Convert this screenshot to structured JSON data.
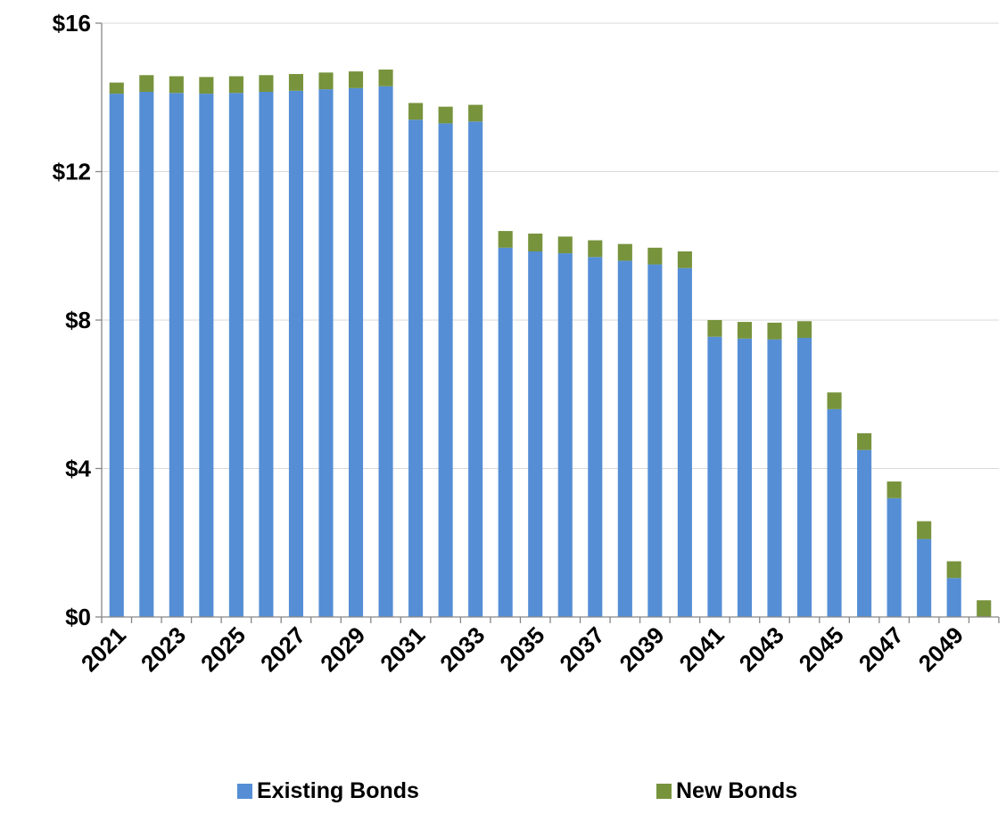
{
  "chart_data": {
    "type": "bar",
    "stacked": true,
    "title": "",
    "xlabel": "",
    "ylabel": "",
    "ylim": [
      0,
      16
    ],
    "y_ticks": [
      0,
      4,
      8,
      12,
      16
    ],
    "y_tick_labels": [
      "$0",
      "$4",
      "$8",
      "$12",
      "$16"
    ],
    "grid": true,
    "legend_position": "bottom",
    "categories": [
      "2021",
      "2022",
      "2023",
      "2024",
      "2025",
      "2026",
      "2027",
      "2028",
      "2029",
      "2030",
      "2031",
      "2032",
      "2033",
      "2034",
      "2035",
      "2036",
      "2037",
      "2038",
      "2039",
      "2040",
      "2041",
      "2042",
      "2043",
      "2044",
      "2045",
      "2046",
      "2047",
      "2048",
      "2049",
      "2050"
    ],
    "x_tick_labels_shown": [
      "2021",
      "2023",
      "2025",
      "2027",
      "2029",
      "2031",
      "2033",
      "2035",
      "2037",
      "2039",
      "2041",
      "2043",
      "2045",
      "2047",
      "2049"
    ],
    "series": [
      {
        "name": "Existing Bonds",
        "color": "#558ed5",
        "values": [
          14.1,
          14.15,
          14.12,
          14.1,
          14.12,
          14.15,
          14.18,
          14.22,
          14.25,
          14.3,
          13.4,
          13.3,
          13.35,
          9.95,
          9.85,
          9.8,
          9.7,
          9.6,
          9.5,
          9.4,
          7.55,
          7.5,
          7.48,
          7.52,
          5.6,
          4.5,
          3.2,
          2.1,
          1.05,
          0.0
        ]
      },
      {
        "name": "New Bonds",
        "color": "#77933c",
        "values": [
          0.3,
          0.45,
          0.45,
          0.45,
          0.45,
          0.45,
          0.45,
          0.45,
          0.45,
          0.45,
          0.45,
          0.45,
          0.45,
          0.45,
          0.48,
          0.45,
          0.45,
          0.45,
          0.45,
          0.45,
          0.45,
          0.45,
          0.45,
          0.45,
          0.45,
          0.45,
          0.45,
          0.48,
          0.45,
          0.45
        ]
      }
    ]
  },
  "colors": {
    "axis": "#868686",
    "grid": "#d9d9d9"
  }
}
